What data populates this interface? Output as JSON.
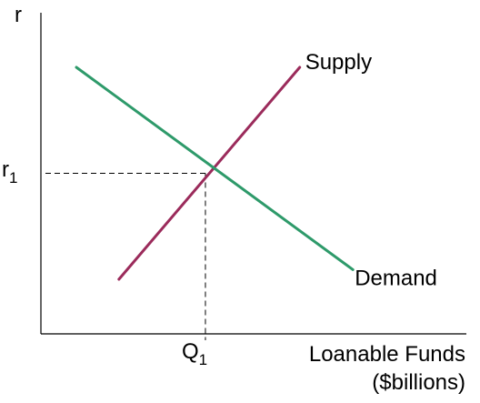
{
  "chart_data": {
    "type": "line",
    "title": "",
    "ylabel": "r",
    "xlabel_lines": [
      "Loanable Funds",
      "($billions)"
    ],
    "equilibrium": {
      "x_label_main": "Q",
      "x_label_sub": "1",
      "y_label_main": "r",
      "y_label_sub": "1"
    },
    "series": [
      {
        "name": "Supply",
        "color": "#9b2b5b",
        "points": [
          [
            0.22,
            0.17
          ],
          [
            0.73,
            0.83
          ]
        ]
      },
      {
        "name": "Demand",
        "color": "#2e9a6a",
        "points": [
          [
            0.1,
            0.83
          ],
          [
            0.88,
            0.2
          ]
        ]
      }
    ],
    "equilibrium_point": [
      0.464,
      0.5
    ],
    "xlim": [
      0,
      1.2
    ],
    "ylim": [
      0,
      1
    ],
    "grid": false,
    "legend": "none",
    "axis_color": "#000000"
  }
}
